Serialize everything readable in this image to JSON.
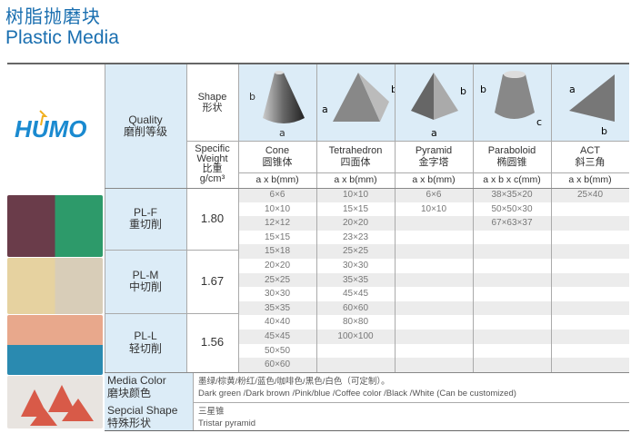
{
  "title_cn": "树脂抛磨块",
  "title_en": "Plastic Media",
  "logo_text": "HUMO",
  "header": {
    "quality_en": "Quality",
    "quality_cn": "磨削等级",
    "shape_en": "Shape",
    "shape_cn": "形状",
    "sw_en1": "Specific",
    "sw_en2": "Weight",
    "sw_cn": "比重",
    "sw_unit": "g/cm³"
  },
  "shapes": [
    {
      "en": "Cone",
      "cn": "圆锥体",
      "dim": "a x b(mm)",
      "icon": "cone-icon"
    },
    {
      "en": "Tetrahedron",
      "cn": "四面体",
      "dim": "a x b(mm)",
      "icon": "tetrahedron-icon"
    },
    {
      "en": "Pyramid",
      "cn": "金字塔",
      "dim": "a x b(mm)",
      "icon": "pyramid-icon"
    },
    {
      "en": "Paraboloid",
      "cn": "椭圆锥",
      "dim": "a x b x c(mm)",
      "icon": "paraboloid-icon"
    },
    {
      "en": "ACT",
      "cn": "斜三角",
      "dim": "a x b(mm)",
      "icon": "act-icon"
    }
  ],
  "grades": [
    {
      "en": "PL-F",
      "cn": "重切削",
      "sw": "1.80"
    },
    {
      "en": "PL-M",
      "cn": "中切削",
      "sw": "1.67"
    },
    {
      "en": "PL-L",
      "cn": "轻切削",
      "sw": "1.56"
    }
  ],
  "rows": [
    [
      "6×6",
      "10×10",
      "6×6",
      "38×35×20",
      "25×40"
    ],
    [
      "10×10",
      "15×15",
      "10×10",
      "50×50×30",
      ""
    ],
    [
      "12×12",
      "20×20",
      "",
      "67×63×37",
      ""
    ],
    [
      "15×15",
      "23×23",
      "",
      "",
      ""
    ],
    [
      "15×18",
      "25×25",
      "",
      "",
      ""
    ],
    [
      "20×20",
      "30×30",
      "",
      "",
      ""
    ],
    [
      "25×25",
      "35×35",
      "",
      "",
      ""
    ],
    [
      "30×30",
      "45×45",
      "",
      "",
      ""
    ],
    [
      "35×35",
      "60×60",
      "",
      "",
      ""
    ],
    [
      "40×40",
      "80×80",
      "",
      "",
      ""
    ],
    [
      "45×45",
      "100×100",
      "",
      "",
      ""
    ],
    [
      "50×50",
      "",
      "",
      "",
      ""
    ],
    [
      "60×60",
      "",
      "",
      "",
      ""
    ]
  ],
  "media_color": {
    "label_en": "Media Color",
    "label_cn": "磨块颜色",
    "value_cn": "墨绿/棕黄/粉红/蓝色/咖啡色/黑色/白色（可定制）。",
    "value_en": "Dark green /Dark brown /Pink/blue /Coffee color /Black /White (Can be customized)"
  },
  "special_shape": {
    "label_en": "Sepcial Shape",
    "label_cn": "特殊形状",
    "value_cn": "三星锥",
    "value_en": "Tristar pyramid"
  },
  "colors": {
    "brand": "#1a6fb0",
    "header_bg": "#dcecf7",
    "stripe": "#ececec"
  }
}
